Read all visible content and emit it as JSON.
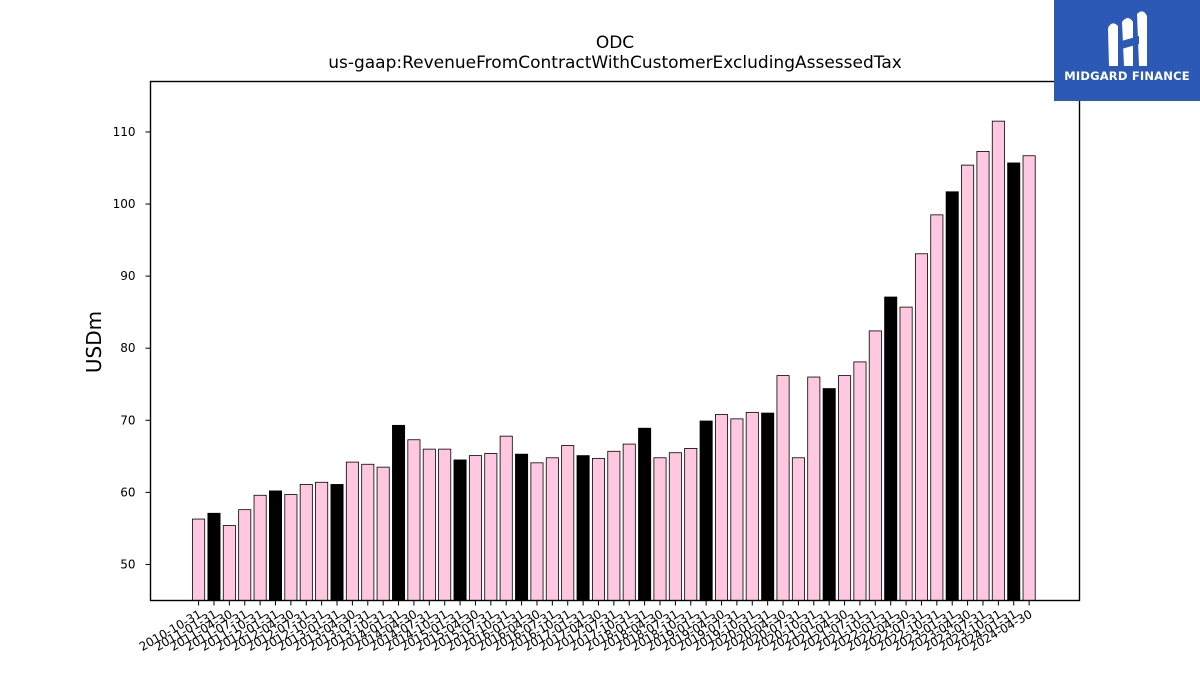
{
  "chart_data": {
    "type": "bar",
    "title": "ODC",
    "subtitle": "us-gaap:RevenueFromContractWithCustomerExcludingAssessedTax",
    "xlabel": "",
    "ylabel": "USDm",
    "ylim": [
      45,
      117
    ],
    "yticks": [
      50,
      60,
      70,
      80,
      90,
      100,
      110
    ],
    "grid": false,
    "colors": {
      "quarter": "#ffc8e0",
      "fiscal_year_end": "#000000",
      "edge": "#000000"
    },
    "categories": [
      "2010-10-31",
      "2011-01-31",
      "2011-04-30",
      "2011-07-31",
      "2011-10-31",
      "2012-01-31",
      "2012-04-30",
      "2012-07-31",
      "2012-10-31",
      "2013-01-31",
      "2013-04-30",
      "2013-07-31",
      "2013-10-31",
      "2014-01-31",
      "2014-04-30",
      "2014-07-31",
      "2014-10-31",
      "2015-01-31",
      "2015-04-30",
      "2015-07-31",
      "2015-10-31",
      "2016-01-31",
      "2016-04-30",
      "2016-07-31",
      "2016-10-31",
      "2017-01-31",
      "2017-04-30",
      "2017-07-31",
      "2017-10-31",
      "2018-01-31",
      "2018-04-30",
      "2018-07-31",
      "2018-10-31",
      "2019-01-31",
      "2019-04-30",
      "2019-07-31",
      "2019-10-31",
      "2020-01-31",
      "2020-04-30",
      "2020-07-31",
      "2020-10-31",
      "2021-01-31",
      "2021-04-30",
      "2021-07-31",
      "2021-10-31",
      "2022-01-31",
      "2022-04-30",
      "2022-07-31",
      "2022-10-31",
      "2023-01-31",
      "2023-04-30",
      "2023-07-31",
      "2023-10-31",
      "2024-01-31",
      "2024-04-30"
    ],
    "values": [
      56.3,
      57.1,
      55.4,
      57.6,
      59.6,
      60.2,
      59.7,
      61.1,
      61.4,
      61.1,
      64.2,
      63.9,
      63.5,
      69.3,
      67.3,
      66.0,
      66.0,
      64.5,
      65.1,
      65.4,
      67.8,
      65.3,
      64.1,
      64.8,
      66.5,
      65.1,
      64.7,
      65.7,
      66.7,
      68.9,
      64.8,
      65.5,
      66.1,
      69.9,
      70.8,
      70.2,
      71.1,
      71.0,
      76.2,
      64.8,
      76.0,
      74.4,
      76.2,
      78.1,
      82.4,
      87.1,
      85.7,
      93.1,
      98.5,
      101.7,
      105.4,
      107.3,
      111.5,
      105.7,
      106.7
    ],
    "fiscal_year_end_bars": [
      "2011-01-31",
      "2012-01-31",
      "2013-01-31",
      "2014-01-31",
      "2015-01-31",
      "2016-01-31",
      "2017-01-31",
      "2018-01-31",
      "2019-01-31",
      "2020-01-31",
      "2021-01-31",
      "2022-01-31",
      "2023-01-31",
      "2024-01-31"
    ]
  },
  "logo": {
    "text": "MIDGARD FINANCE",
    "color": "#2b59b5"
  }
}
